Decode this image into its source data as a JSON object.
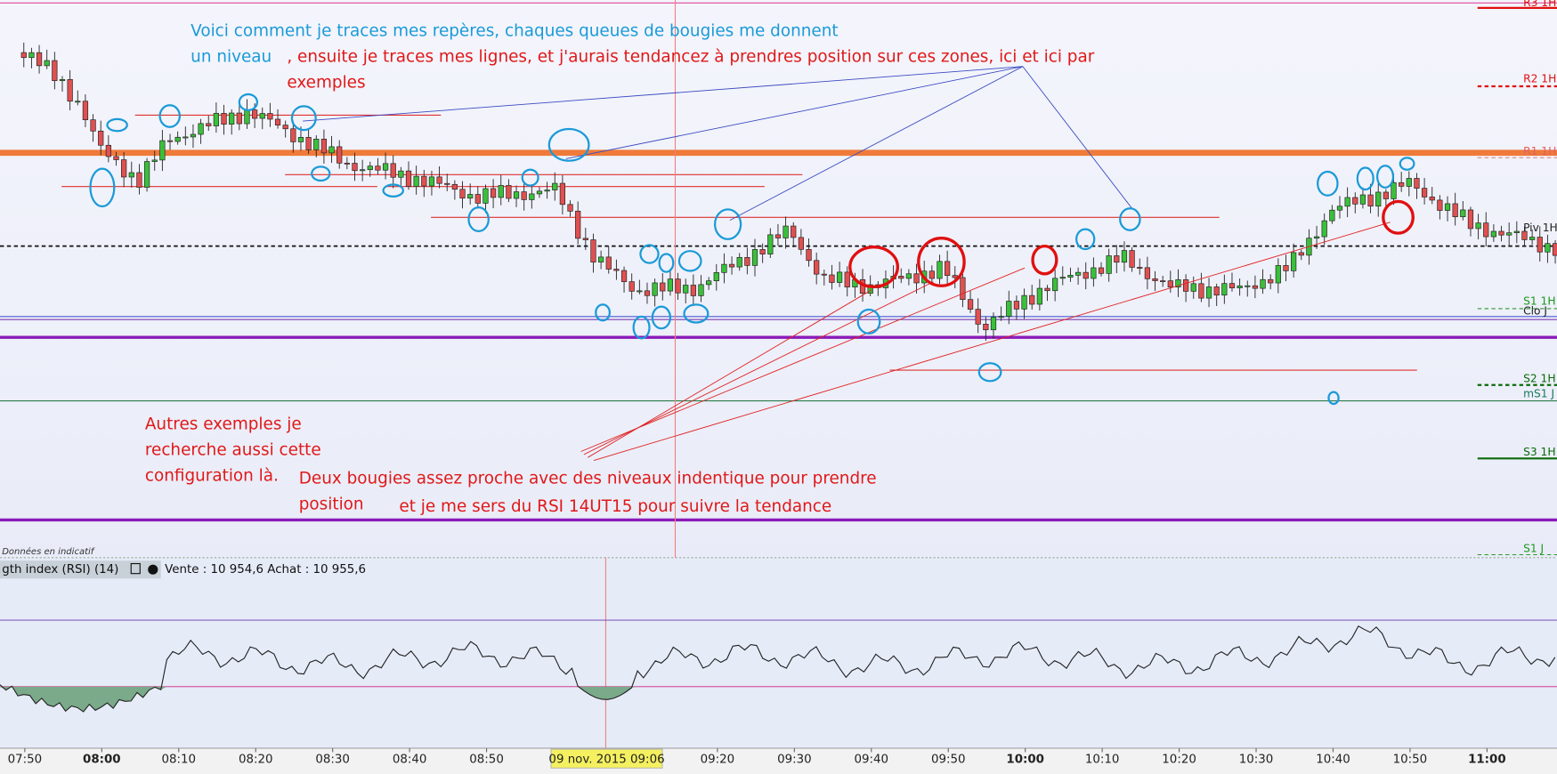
{
  "chart": {
    "annotations": {
      "blue": [
        "Voici comment je traces mes repères, chaques queues de bougies me donnent",
        "un niveau"
      ],
      "red_top": [
        ", ensuite je traces mes lignes, et j'aurais tendancez à prendres position sur ces zones, ici et ici par",
        "exemples"
      ],
      "red_left": [
        "Autres exemples je",
        "recherche aussi cette",
        "configuration là."
      ],
      "red_bottom": [
        "Deux bougies assez proche avec des niveaux indentique pour prendre",
        "position",
        "et je me sers du RSI 14UT15 pour suivre la tendance"
      ]
    },
    "levels": [
      "R3 1H",
      "R2 1H",
      "R1 1H",
      "Piv 1H",
      "S1 1H",
      "Clo J",
      "S2 1H",
      "mS1 J",
      "S3 1H",
      "S1 J"
    ],
    "note": "Données en indicatif",
    "rsi": {
      "title": "gth index (RSI) (14)",
      "quote": "Vente : 10 954,6 Achat : 10 955,6"
    },
    "time_axis": {
      "labels": [
        "07:50",
        "08:00",
        "08:10",
        "08:20",
        "08:30",
        "08:40",
        "08:50",
        null,
        null,
        "09:20",
        "09:30",
        "09:40",
        "09:50",
        "10:00",
        "10:10",
        "10:20",
        "10:30",
        "10:40",
        "10:50",
        "11:00"
      ],
      "cursor": "09 nov. 2015 09:06"
    }
  }
}
